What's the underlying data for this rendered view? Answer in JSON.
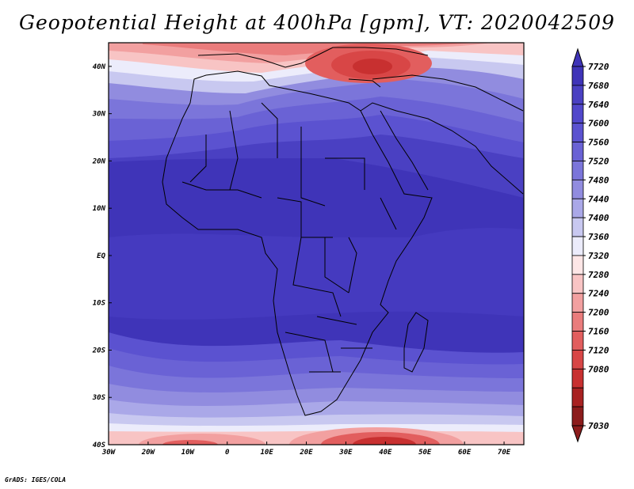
{
  "title": "Geopotential Height at 400hPa [gpm], VT: 2020042509",
  "credit": "GrADS: IGES/COLA",
  "map": {
    "projection": "lat-lon",
    "lon_range": [
      -30,
      75
    ],
    "lat_range": [
      -40,
      45
    ],
    "lon_ticks": [
      {
        "value": -30,
        "label": "30W"
      },
      {
        "value": -20,
        "label": "20W"
      },
      {
        "value": -10,
        "label": "10W"
      },
      {
        "value": 0,
        "label": "0"
      },
      {
        "value": 10,
        "label": "10E"
      },
      {
        "value": 20,
        "label": "20E"
      },
      {
        "value": 30,
        "label": "30E"
      },
      {
        "value": 40,
        "label": "40E"
      },
      {
        "value": 50,
        "label": "50E"
      },
      {
        "value": 60,
        "label": "60E"
      },
      {
        "value": 70,
        "label": "70E"
      }
    ],
    "lat_ticks": [
      {
        "value": 40,
        "label": "40N"
      },
      {
        "value": 30,
        "label": "30N"
      },
      {
        "value": 20,
        "label": "20N"
      },
      {
        "value": 10,
        "label": "10N"
      },
      {
        "value": 0,
        "label": "EQ"
      },
      {
        "value": -10,
        "label": "10S"
      },
      {
        "value": -20,
        "label": "20S"
      },
      {
        "value": -30,
        "label": "30S"
      },
      {
        "value": -40,
        "label": "40S"
      }
    ]
  },
  "colorbar": {
    "labels": [
      "7720",
      "7680",
      "7640",
      "7600",
      "7560",
      "7520",
      "7480",
      "7440",
      "7400",
      "7360",
      "7320",
      "7280",
      "7240",
      "7200",
      "7160",
      "7120",
      "7080",
      "7030"
    ],
    "colors": [
      "#3f34b8",
      "#4a40c2",
      "#5147cb",
      "#5b52d0",
      "#6a62d5",
      "#7b75da",
      "#918cdf",
      "#aaa8e8",
      "#c8c8f0",
      "#ececfb",
      "#fde6e6",
      "#f8c4c4",
      "#f2a0a0",
      "#ea7c7c",
      "#e25e5e",
      "#d84646",
      "#c83030",
      "#a82222",
      "#8c1c1c"
    ]
  }
}
